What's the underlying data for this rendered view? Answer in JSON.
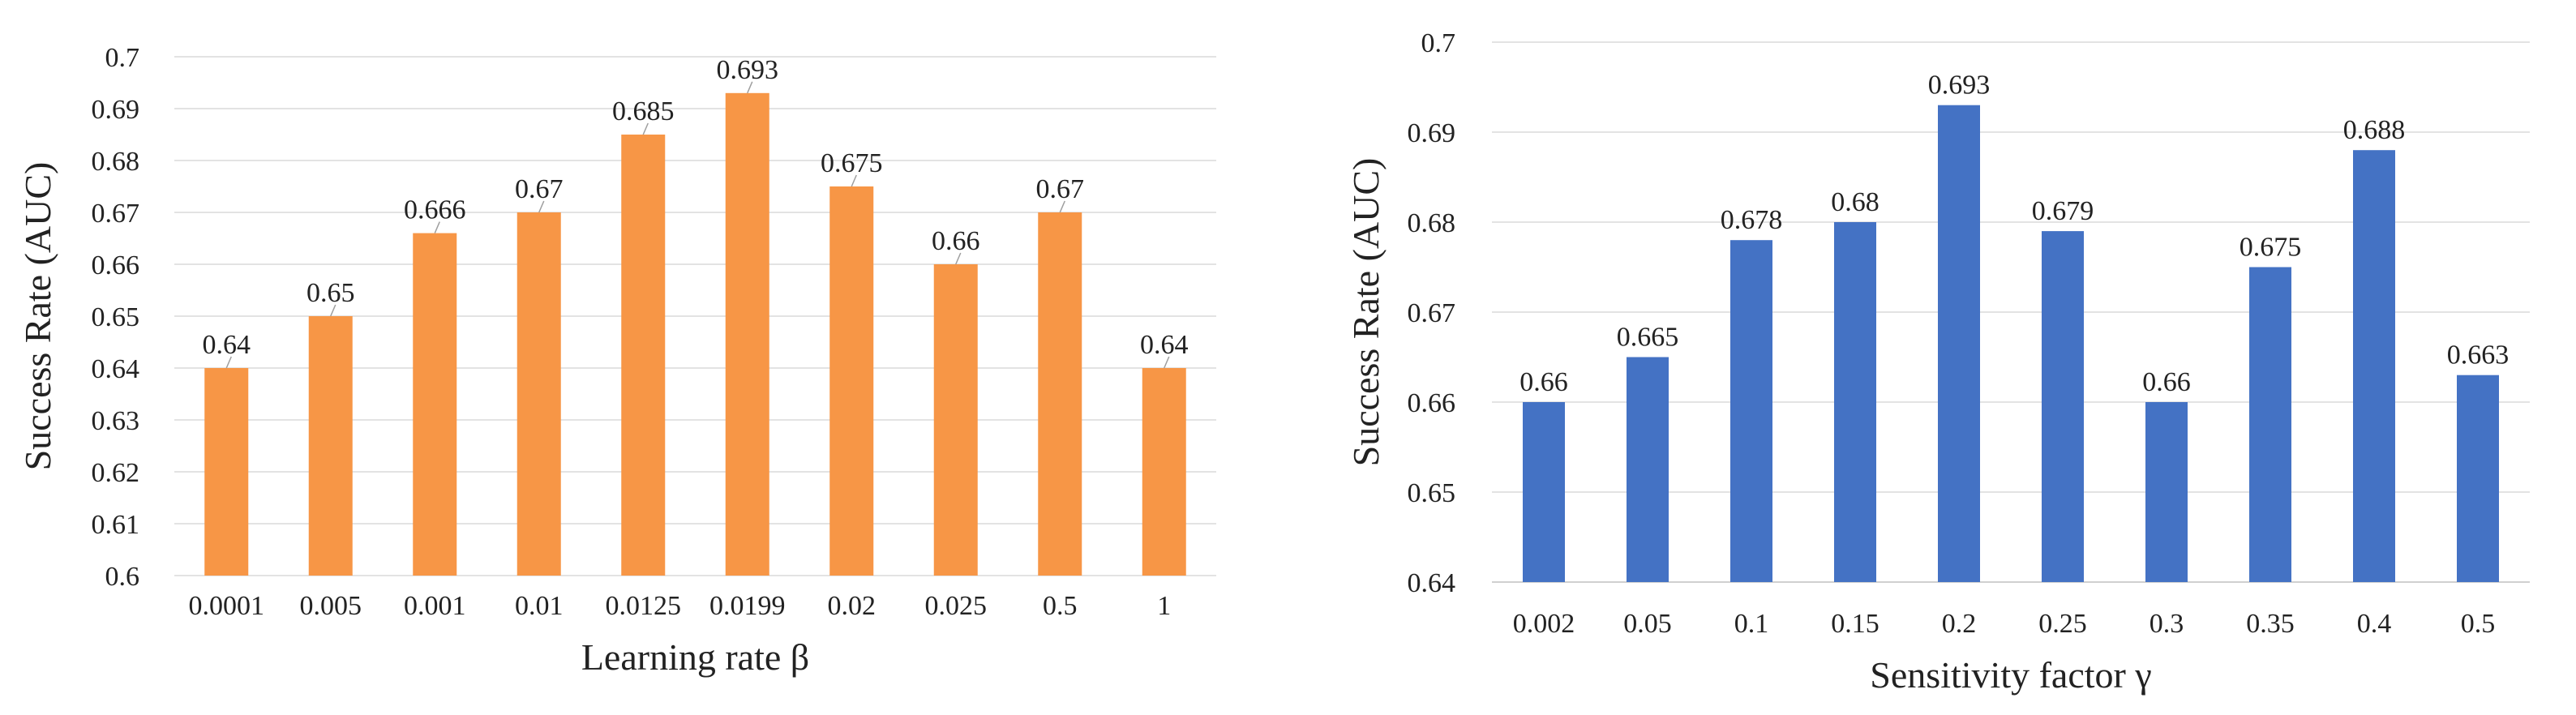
{
  "chart_data": [
    {
      "type": "bar",
      "title": "",
      "xlabel": "Learning rate β",
      "ylabel": "Success Rate (AUC)",
      "ylim": [
        0.6,
        0.7
      ],
      "yticks": [
        "0.6",
        "0.61",
        "0.62",
        "0.63",
        "0.64",
        "0.65",
        "0.66",
        "0.67",
        "0.68",
        "0.69",
        "0.7"
      ],
      "categories": [
        "0.0001",
        "0.005",
        "0.001",
        "0.01",
        "0.0125",
        "0.0199",
        "0.02",
        "0.025",
        "0.5",
        "1"
      ],
      "values": [
        0.64,
        0.65,
        0.666,
        0.67,
        0.685,
        0.693,
        0.675,
        0.66,
        0.67,
        0.64
      ],
      "labels": [
        "0.64",
        "0.65",
        "0.666",
        "0.67",
        "0.685",
        "0.693",
        "0.675",
        "0.66",
        "0.67",
        "0.64"
      ],
      "color": "#F79646",
      "grid": true
    },
    {
      "type": "bar",
      "title": "",
      "xlabel": "Sensitivity factor γ",
      "ylabel": "Success Rate (AUC)",
      "ylim": [
        0.64,
        0.7
      ],
      "yticks": [
        "0.64",
        "0.65",
        "0.66",
        "0.67",
        "0.68",
        "0.69",
        "0.7"
      ],
      "categories": [
        "0.002",
        "0.05",
        "0.1",
        "0.15",
        "0.2",
        "0.25",
        "0.3",
        "0.35",
        "0.4",
        "0.5"
      ],
      "values": [
        0.66,
        0.665,
        0.678,
        0.68,
        0.693,
        0.679,
        0.66,
        0.675,
        0.688,
        0.663
      ],
      "labels": [
        "0.66",
        "0.665",
        "0.678",
        "0.68",
        "0.693",
        "0.679",
        "0.66",
        "0.675",
        "0.688",
        "0.663"
      ],
      "color": "#4472C4",
      "grid": true
    }
  ]
}
